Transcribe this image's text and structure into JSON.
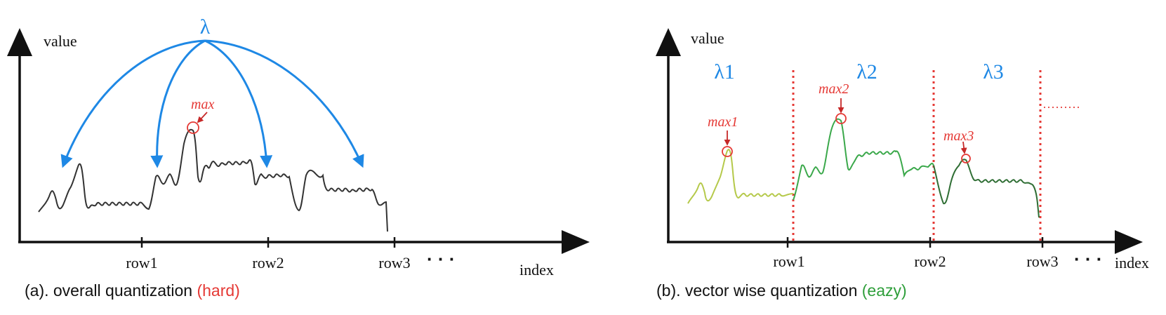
{
  "panel_a": {
    "y_axis_label": "value",
    "x_axis_label": "index",
    "ticks": [
      "row1",
      "row2",
      "row3"
    ],
    "ellipsis": "· · ·",
    "lambda_label": "λ",
    "max_label": "max",
    "caption_main": "(a). overall quantization ",
    "caption_tag": "(hard)"
  },
  "panel_b": {
    "y_axis_label": "value",
    "x_axis_label": "index",
    "ticks": [
      "row1",
      "row2",
      "row3"
    ],
    "ellipsis": "· · ·",
    "lambda_labels": [
      "λ1",
      "λ2",
      "λ3"
    ],
    "max_labels": [
      "max1",
      "max2",
      "max3"
    ],
    "dotted_continuation": "·········",
    "caption_main": "(b). vector wise quantization ",
    "caption_tag": "(eazy)"
  },
  "colors": {
    "axis": "#111111",
    "lambda_blue": "#1e88e5",
    "max_red": "#e53935",
    "hard_red": "#e53935",
    "eazy_green": "#2e9e3a",
    "segment1": "#b5c94a",
    "segment2": "#3aa84a",
    "segment3": "#2f6e34"
  }
}
